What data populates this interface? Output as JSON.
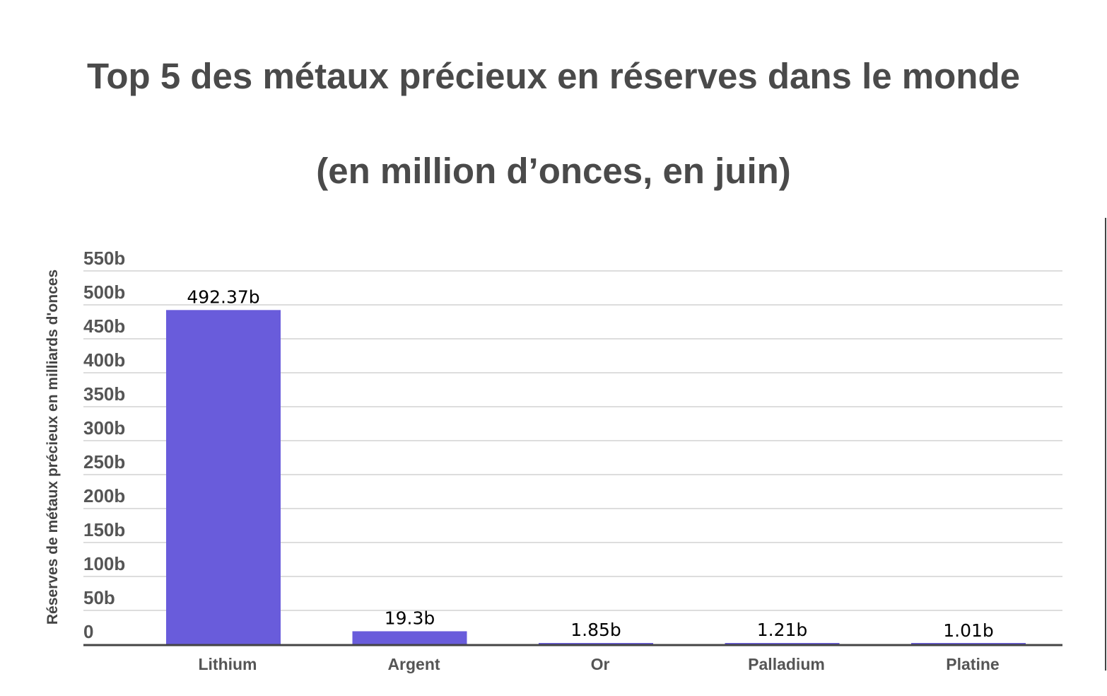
{
  "chart": {
    "title_line1": "Top 5 des métaux précieux en réserves dans le monde",
    "title_line2": "(en million d’onces, en juin)"
  },
  "colors": {
    "bar": "#695cdb",
    "grid": "#dddddd",
    "axis": "#444444",
    "title": "#4a4a4a"
  },
  "chart_data": {
    "type": "bar",
    "title": "Top 5 des métaux précieux en réserves dans le monde (en million d’onces, en juin)",
    "xlabel": "",
    "ylabel": "Réserves de métaux précieux en milliards d'onces",
    "categories": [
      "Lithium",
      "Argent",
      "Or",
      "Palladium",
      "Platine"
    ],
    "values": [
      492.37,
      19.3,
      1.85,
      1.21,
      1.01
    ],
    "data_labels": [
      "492.37b",
      "19.3b",
      "1.85b",
      "1.21b",
      "1.01b"
    ],
    "ylim": [
      0,
      550
    ],
    "yticks": [
      0,
      50,
      100,
      150,
      200,
      250,
      300,
      350,
      400,
      450,
      500,
      550
    ],
    "ytick_labels": [
      "0",
      "50b",
      "100b",
      "150b",
      "200b",
      "250b",
      "300b",
      "350b",
      "400b",
      "450b",
      "500b",
      "550b"
    ],
    "grid": true,
    "legend": "none"
  }
}
